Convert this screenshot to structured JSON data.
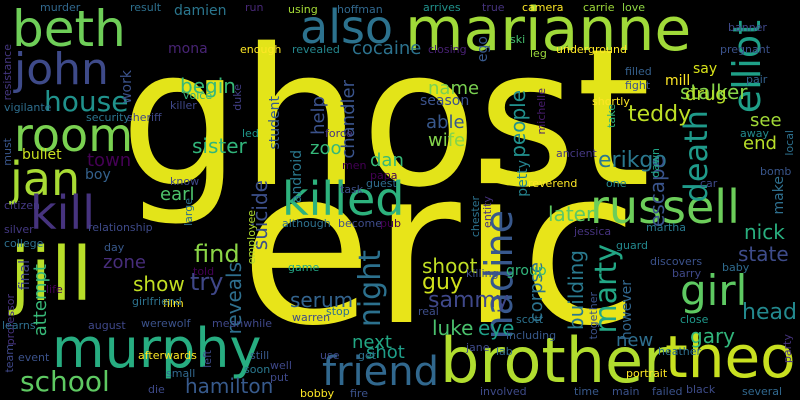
{
  "background": "#000000",
  "words": [
    {
      "text": "ghost",
      "color": "#e3e419"
    },
    {
      "text": "eric",
      "color": "#e8e419"
    },
    {
      "text": "jill",
      "color": "#b8de29"
    },
    {
      "text": "brother",
      "color": "#b1dd2f"
    },
    {
      "text": "theo",
      "color": "#c8e020"
    },
    {
      "text": "marianne",
      "color": "#a0da39"
    },
    {
      "text": "murphy",
      "color": "#27ad81"
    },
    {
      "text": "beth",
      "color": "#6ece58"
    },
    {
      "text": "russell",
      "color": "#6ccd5a"
    },
    {
      "text": "killed",
      "color": "#2db27d"
    },
    {
      "text": "friend",
      "color": "#31688e"
    },
    {
      "text": "room",
      "color": "#7ad151"
    },
    {
      "text": "john",
      "color": "#3e4a89"
    },
    {
      "text": "jan",
      "color": "#a8db34"
    },
    {
      "text": "kill",
      "color": "#46337e"
    },
    {
      "text": "also",
      "color": "#2c728e"
    },
    {
      "text": "girl",
      "color": "#5ec962"
    },
    {
      "text": "elliot",
      "color": "#1fa088"
    },
    {
      "text": "nadine",
      "color": "#38588c"
    },
    {
      "text": "marty",
      "color": "#22a785"
    },
    {
      "text": "death",
      "color": "#1f9a8a"
    },
    {
      "text": "school",
      "color": "#5ec962"
    },
    {
      "text": "house",
      "color": "#20928c"
    },
    {
      "text": "night",
      "color": "#2c718e"
    },
    {
      "text": "teddy",
      "color": "#bddf26"
    },
    {
      "text": "hamilton",
      "color": "#375a8c"
    },
    {
      "text": "erikgo",
      "color": "#2a788e"
    },
    {
      "text": "suicide",
      "color": "#3c4f8a"
    },
    {
      "text": "sammy",
      "color": "#3f4889"
    },
    {
      "text": "gary",
      "color": "#31b57b"
    },
    {
      "text": "stalker",
      "color": "#86d549"
    },
    {
      "text": "begin",
      "color": "#37b878"
    },
    {
      "text": "shoot",
      "color": "#c0df25"
    },
    {
      "text": "sister",
      "color": "#31b57b"
    },
    {
      "text": "reveals",
      "color": "#2e6f8e"
    },
    {
      "text": "head",
      "color": "#23898e"
    },
    {
      "text": "escape",
      "color": "#3a548c"
    },
    {
      "text": "nick",
      "color": "#29af7f"
    },
    {
      "text": "building",
      "color": "#29798e"
    },
    {
      "text": "guy",
      "color": "#d0e11c"
    },
    {
      "text": "luke",
      "color": "#4ac16d"
    },
    {
      "text": "eye",
      "color": "#1fa188"
    },
    {
      "text": "serum",
      "color": "#33638d"
    },
    {
      "text": "people",
      "color": "#21908d"
    },
    {
      "text": "find",
      "color": "#8bd646"
    },
    {
      "text": "try",
      "color": "#3f4788"
    },
    {
      "text": "show",
      "color": "#c2df23"
    },
    {
      "text": "state",
      "color": "#3e4c8a"
    },
    {
      "text": "later",
      "color": "#5ec962"
    },
    {
      "text": "cocaine",
      "color": "#2c728e"
    },
    {
      "text": "chandler",
      "color": "#3a548c"
    },
    {
      "text": "attempt",
      "color": "#37b878"
    },
    {
      "text": "zone",
      "color": "#472d7b"
    },
    {
      "text": "town",
      "color": "#440154"
    },
    {
      "text": "next",
      "color": "#22a884"
    },
    {
      "text": "shot",
      "color": "#1f9e89"
    },
    {
      "text": "drug",
      "color": "#b5de2b"
    },
    {
      "text": "end",
      "color": "#b8de29"
    },
    {
      "text": "see",
      "color": "#a2da37"
    },
    {
      "text": "name",
      "color": "#7ad151"
    },
    {
      "text": "able",
      "color": "#38588c"
    },
    {
      "text": "wife",
      "color": "#84d44b"
    },
    {
      "text": "help",
      "color": "#3b528b"
    },
    {
      "text": "zoo",
      "color": "#35b779"
    },
    {
      "text": "dan",
      "color": "#38b977"
    },
    {
      "text": "earl",
      "color": "#4ec36b"
    },
    {
      "text": "bullet",
      "color": "#c8e020"
    },
    {
      "text": "boy",
      "color": "#34618d"
    },
    {
      "text": "work",
      "color": "#3b528b"
    },
    {
      "text": "student",
      "color": "#365c8d"
    },
    {
      "text": "corpse",
      "color": "#2c728e"
    },
    {
      "text": "new",
      "color": "#2e6e8e"
    },
    {
      "text": "however",
      "color": "#31668e"
    },
    {
      "text": "mill",
      "color": "#fde725"
    },
    {
      "text": "say",
      "color": "#d8e219"
    },
    {
      "text": "season",
      "color": "#3b528b"
    },
    {
      "text": "final",
      "color": "#414487"
    },
    {
      "text": "group",
      "color": "#31b57b"
    },
    {
      "text": "android",
      "color": "#2a788e"
    },
    {
      "text": "petty",
      "color": "#25838e"
    },
    {
      "text": "damien",
      "color": "#2a768e"
    },
    {
      "text": "mona",
      "color": "#482475"
    },
    {
      "text": "voice",
      "color": "#35b779"
    },
    {
      "text": "revealed",
      "color": "#24878e"
    },
    {
      "text": "using",
      "color": "#a5db36"
    },
    {
      "text": "hoffman",
      "color": "#31688e"
    },
    {
      "text": "carrie",
      "color": "#9fda3a"
    },
    {
      "text": "love",
      "color": "#8fd744"
    },
    {
      "text": "camera",
      "color": "#fde725"
    },
    {
      "text": "true",
      "color": "#46337e"
    },
    {
      "text": "arrives",
      "color": "#20928c"
    },
    {
      "text": "result",
      "color": "#2d708e"
    },
    {
      "text": "run",
      "color": "#482878"
    },
    {
      "text": "murder",
      "color": "#31688e"
    },
    {
      "text": "resistance",
      "color": "#453781"
    },
    {
      "text": "ego",
      "color": "#38598c"
    },
    {
      "text": "leg",
      "color": "#9bd93c"
    },
    {
      "text": "ski",
      "color": "#46c06f"
    },
    {
      "text": "underground",
      "color": "#fde725"
    },
    {
      "text": "fight",
      "color": "#3b528b"
    },
    {
      "text": "filled",
      "color": "#35608d"
    },
    {
      "text": "pregnant",
      "color": "#3b528b"
    },
    {
      "text": "banner",
      "color": "#3f4889"
    },
    {
      "text": "shortly",
      "color": "#fde725"
    },
    {
      "text": "pair",
      "color": "#34618d"
    },
    {
      "text": "away",
      "color": "#238a8d"
    },
    {
      "text": "bomb",
      "color": "#39568c"
    },
    {
      "text": "car",
      "color": "#3e4989"
    },
    {
      "text": "make",
      "color": "#2e6f8e"
    },
    {
      "text": "local",
      "color": "#2d708e"
    },
    {
      "text": "ancient",
      "color": "#453882"
    },
    {
      "text": "take",
      "color": "#31b57b"
    },
    {
      "text": "dawn",
      "color": "#20a486"
    },
    {
      "text": "led",
      "color": "#1f988b"
    },
    {
      "text": "force",
      "color": "#46327e"
    },
    {
      "text": "men",
      "color": "#440154"
    },
    {
      "text": "duke",
      "color": "#423f85"
    },
    {
      "text": "security",
      "color": "#2b748e"
    },
    {
      "text": "sheriff",
      "color": "#3f4889"
    },
    {
      "text": "killer",
      "color": "#3f4889"
    },
    {
      "text": "enough",
      "color": "#fde725"
    },
    {
      "text": "closing",
      "color": "#482173"
    },
    {
      "text": "michelle",
      "color": "#481c6e"
    },
    {
      "text": "vigilante",
      "color": "#2e6e8e"
    },
    {
      "text": "must",
      "color": "#39568c"
    },
    {
      "text": "citizen",
      "color": "#443983"
    },
    {
      "text": "know",
      "color": "#3f4788"
    },
    {
      "text": "large",
      "color": "#2d708e"
    },
    {
      "text": "task",
      "color": "#3c4f8a"
    },
    {
      "text": "papa",
      "color": "#440154"
    },
    {
      "text": "guest",
      "color": "#2f6c8e"
    },
    {
      "text": "reverend",
      "color": "#fde725"
    },
    {
      "text": "one",
      "color": "#24868e"
    },
    {
      "text": "silver",
      "color": "#443983"
    },
    {
      "text": "relationship",
      "color": "#3e4a89"
    },
    {
      "text": "employee",
      "color": "#b0dd2f"
    },
    {
      "text": "although",
      "color": "#2d718e"
    },
    {
      "text": "become",
      "color": "#3e4c8a"
    },
    {
      "text": "pub",
      "color": "#440154"
    },
    {
      "text": "chester",
      "color": "#2c728e"
    },
    {
      "text": "jessica",
      "color": "#46337e"
    },
    {
      "text": "entity",
      "color": "#46327e"
    },
    {
      "text": "guard",
      "color": "#23888e"
    },
    {
      "text": "martha",
      "color": "#29798e"
    },
    {
      "text": "discovers",
      "color": "#3b528b"
    },
    {
      "text": "college",
      "color": "#2d708e"
    },
    {
      "text": "day",
      "color": "#38598c"
    },
    {
      "text": "life",
      "color": "#440154"
    },
    {
      "text": "told",
      "color": "#440154"
    },
    {
      "text": "game",
      "color": "#22a785"
    },
    {
      "text": "killing",
      "color": "#3e4c8a"
    },
    {
      "text": "scott",
      "color": "#2c728e"
    },
    {
      "text": "baby",
      "color": "#2f6b8e"
    },
    {
      "text": "barry",
      "color": "#3f4889"
    },
    {
      "text": "close",
      "color": "#1f988b"
    },
    {
      "text": "together",
      "color": "#3b528b"
    },
    {
      "text": "professor",
      "color": "#46337e"
    },
    {
      "text": "learns",
      "color": "#2e6e8e"
    },
    {
      "text": "august",
      "color": "#3f4889"
    },
    {
      "text": "werewolf",
      "color": "#3b528b"
    },
    {
      "text": "film",
      "color": "#fde725"
    },
    {
      "text": "meanwhile",
      "color": "#3f4889"
    },
    {
      "text": "warren",
      "color": "#3e4a89"
    },
    {
      "text": "stop",
      "color": "#2c728e"
    },
    {
      "text": "real",
      "color": "#3d4e8a"
    },
    {
      "text": "including",
      "color": "#38598c"
    },
    {
      "text": "heather",
      "color": "#2e6f8e"
    },
    {
      "text": "team",
      "color": "#3f4889"
    },
    {
      "text": "event",
      "color": "#3b528b"
    },
    {
      "text": "jane",
      "color": "#3e4a89"
    },
    {
      "text": "lab",
      "color": "#31688e"
    },
    {
      "text": "afterwards",
      "color": "#fde725"
    },
    {
      "text": "die",
      "color": "#3e4a89"
    },
    {
      "text": "small",
      "color": "#31688e"
    },
    {
      "text": "left",
      "color": "#3e4c8a"
    },
    {
      "text": "still",
      "color": "#38588c"
    },
    {
      "text": "soon",
      "color": "#2a788e"
    },
    {
      "text": "well",
      "color": "#3f4889"
    },
    {
      "text": "put",
      "color": "#3e4989"
    },
    {
      "text": "use",
      "color": "#3f4889"
    },
    {
      "text": "get",
      "color": "#2d708e"
    },
    {
      "text": "bobby",
      "color": "#fde725"
    },
    {
      "text": "fire",
      "color": "#3b528b"
    },
    {
      "text": "involved",
      "color": "#3e4a89"
    },
    {
      "text": "time",
      "color": "#38598c"
    },
    {
      "text": "main",
      "color": "#3b528b"
    },
    {
      "text": "failed",
      "color": "#3b528b"
    },
    {
      "text": "black",
      "color": "#3e4c8a"
    },
    {
      "text": "several",
      "color": "#31688e"
    },
    {
      "text": "portrait",
      "color": "#fde725"
    },
    {
      "text": "party",
      "color": "#46337e"
    },
    {
      "text": "girlfriend",
      "color": "#2c728e"
    },
    {
      "text": "united",
      "color": "#3b528b"
    }
  ]
}
